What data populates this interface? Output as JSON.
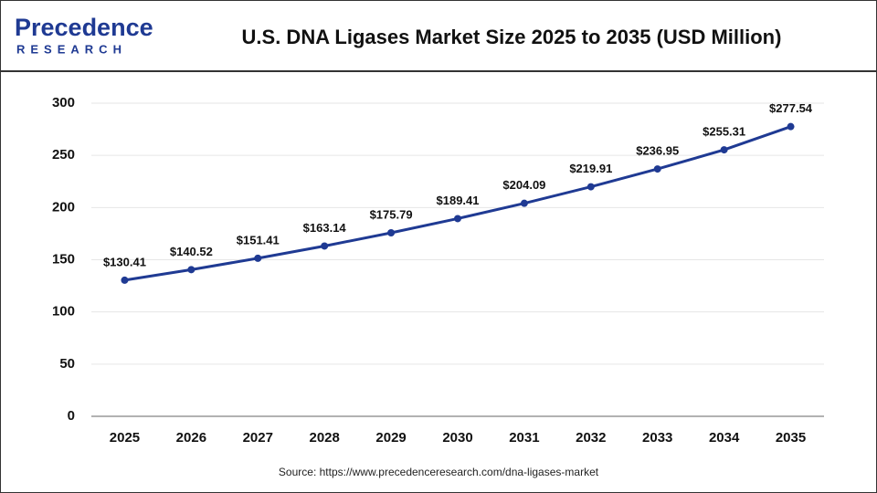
{
  "logo": {
    "name": "Precedence",
    "tagline": "RESEARCH"
  },
  "chart_data": {
    "type": "line",
    "title": "U.S. DNA Ligases Market Size 2025 to 2035 (USD Million)",
    "categories": [
      "2025",
      "2026",
      "2027",
      "2028",
      "2029",
      "2030",
      "2031",
      "2032",
      "2033",
      "2034",
      "2035"
    ],
    "values": [
      130.41,
      140.52,
      151.41,
      163.14,
      175.79,
      189.41,
      204.09,
      219.91,
      236.95,
      255.31,
      277.54
    ],
    "value_labels": [
      "$130.41",
      "$140.52",
      "$151.41",
      "$163.14",
      "$175.79",
      "$189.41",
      "$204.09",
      "$219.91",
      "$236.95",
      "$255.31",
      "$277.54"
    ],
    "color": "#1f3a93",
    "ylim": [
      0,
      300
    ],
    "yticks": [
      0,
      50,
      100,
      150,
      200,
      250,
      300
    ],
    "grid": true,
    "source": "Source: https://www.precedenceresearch.com/dna-ligases-market"
  }
}
